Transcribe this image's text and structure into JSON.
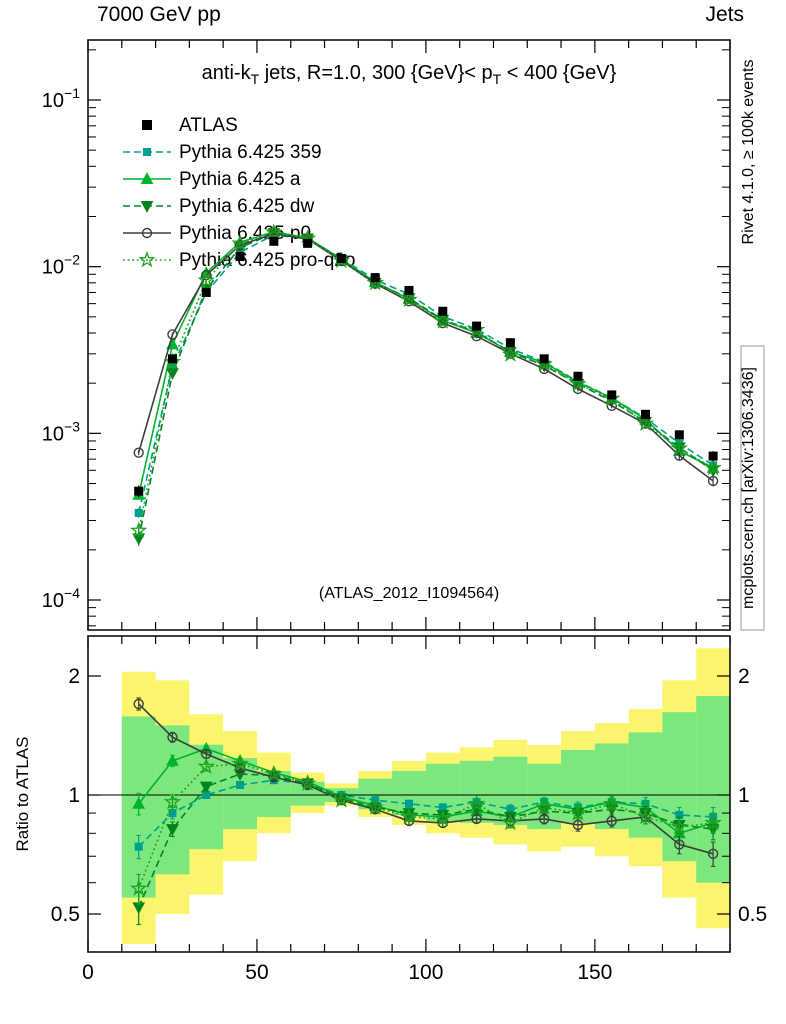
{
  "header": {
    "left": "7000 GeV pp",
    "right": "Jets"
  },
  "right_margin": {
    "top": "Rivet 4.1.0, ≥ 100k events",
    "bottom": "mcplots.cern.ch [arXiv:1306.3436]"
  },
  "watermark": "(ATLAS_2012_I1094564)",
  "chart_data": {
    "type": "line",
    "title_parts": [
      {
        "t": "anti-k"
      },
      {
        "t": "T",
        "sub": true
      },
      {
        "t": " jets, R=1.0, 300 {GeV}< p"
      },
      {
        "t": "T",
        "sub": true
      },
      {
        "t": " < 400 {GeV}"
      }
    ],
    "x_axis": {
      "min": 0,
      "max": 190,
      "major_ticks": [
        0,
        50,
        100,
        150
      ],
      "minor_step": 10
    },
    "y_axis_main": {
      "scale": "log",
      "exponents": [
        -1,
        -2,
        -3,
        -4
      ],
      "range": [
        6.6e-05,
        0.23
      ]
    },
    "y_axis_ratio": {
      "scale": "log",
      "tick_values": [
        2,
        1,
        0.5
      ],
      "tick_labels": [
        "2",
        "1",
        "0.5"
      ],
      "range": [
        0.4,
        2.5
      ],
      "label": "Ratio to ATLAS",
      "reference_line": 1
    },
    "x": [
      15,
      25,
      35,
      45,
      55,
      65,
      75,
      85,
      95,
      105,
      115,
      125,
      135,
      145,
      155,
      165,
      175,
      185
    ],
    "reference": {
      "name": "ATLAS",
      "color": "#000000",
      "marker": "square",
      "values": [
        0.00045,
        0.0028,
        0.007,
        0.0115,
        0.0142,
        0.0138,
        0.0112,
        0.0086,
        0.0072,
        0.0054,
        0.0044,
        0.0035,
        0.0028,
        0.0022,
        0.0017,
        0.0013,
        0.00098,
        0.00073
      ],
      "err_frac": [
        0.08,
        0.05,
        0.04,
        0.03,
        0.03,
        0.03,
        0.03,
        0.03,
        0.03,
        0.03,
        0.035,
        0.04,
        0.04,
        0.045,
        0.05,
        0.055,
        0.06,
        0.07
      ]
    },
    "series": [
      {
        "name": "Pythia 6.425 359",
        "color": "#00a08f",
        "line": "dashed",
        "marker": "square",
        "ratio": [
          0.74,
          0.9,
          1.0,
          1.06,
          1.09,
          1.07,
          1.0,
          0.97,
          0.95,
          0.93,
          0.96,
          0.92,
          0.96,
          0.93,
          0.96,
          0.95,
          0.89,
          0.88
        ],
        "err": [
          0.05,
          0.03,
          0.02,
          0.02,
          0.015,
          0.015,
          0.015,
          0.02,
          0.02,
          0.02,
          0.02,
          0.025,
          0.025,
          0.03,
          0.03,
          0.035,
          0.04,
          0.05
        ]
      },
      {
        "name": "Pythia 6.425 a",
        "color": "#00b32c",
        "line": "solid",
        "marker": "triangle-up",
        "ratio": [
          0.95,
          1.22,
          1.31,
          1.22,
          1.14,
          1.08,
          0.99,
          0.94,
          0.89,
          0.88,
          0.91,
          0.88,
          0.95,
          0.92,
          0.96,
          0.93,
          0.8,
          0.85
        ],
        "err": [
          0.06,
          0.04,
          0.025,
          0.02,
          0.015,
          0.015,
          0.015,
          0.02,
          0.02,
          0.02,
          0.02,
          0.025,
          0.03,
          0.03,
          0.03,
          0.035,
          0.04,
          0.05
        ]
      },
      {
        "name": "Pythia 6.425 dw",
        "color": "#00851f",
        "line": "dashed",
        "marker": "triangle-down",
        "ratio": [
          0.52,
          0.82,
          1.05,
          1.13,
          1.12,
          1.07,
          0.98,
          0.93,
          0.9,
          0.89,
          0.92,
          0.88,
          0.91,
          0.9,
          0.92,
          0.9,
          0.84,
          0.82
        ],
        "err": [
          0.05,
          0.035,
          0.025,
          0.02,
          0.015,
          0.015,
          0.015,
          0.02,
          0.02,
          0.02,
          0.02,
          0.025,
          0.025,
          0.03,
          0.03,
          0.035,
          0.04,
          0.05
        ]
      },
      {
        "name": "Pythia 6.425 p0",
        "color": "#3d3d3d",
        "line": "solid",
        "marker": "circle",
        "ratio": [
          1.7,
          1.4,
          1.27,
          1.17,
          1.11,
          1.06,
          0.97,
          0.92,
          0.86,
          0.85,
          0.87,
          0.86,
          0.87,
          0.84,
          0.86,
          0.88,
          0.75,
          0.71
        ],
        "err": [
          0.06,
          0.04,
          0.03,
          0.02,
          0.02,
          0.015,
          0.015,
          0.02,
          0.02,
          0.02,
          0.02,
          0.025,
          0.025,
          0.03,
          0.03,
          0.035,
          0.04,
          0.05
        ]
      },
      {
        "name": "Pythia 6.425 pro-q2o",
        "color": "#1fa01f",
        "line": "dotted",
        "marker": "star",
        "ratio": [
          0.58,
          0.96,
          1.18,
          1.2,
          1.13,
          1.07,
          0.97,
          0.93,
          0.88,
          0.87,
          0.95,
          0.85,
          0.93,
          0.9,
          0.95,
          0.88,
          0.83,
          0.85
        ],
        "err": [
          0.05,
          0.04,
          0.03,
          0.02,
          0.02,
          0.015,
          0.015,
          0.02,
          0.02,
          0.02,
          0.02,
          0.025,
          0.03,
          0.03,
          0.03,
          0.035,
          0.04,
          0.05
        ]
      }
    ],
    "bands": {
      "bin_start": 10,
      "bin_width": 10,
      "yellow": {
        "color": "#fbf46d",
        "lo": [
          0.42,
          0.5,
          0.56,
          0.68,
          0.8,
          0.9,
          0.94,
          0.88,
          0.84,
          0.8,
          0.78,
          0.75,
          0.72,
          0.74,
          0.7,
          0.66,
          0.55,
          0.46
        ],
        "hi": [
          2.05,
          1.95,
          1.6,
          1.45,
          1.28,
          1.14,
          1.07,
          1.15,
          1.22,
          1.28,
          1.32,
          1.38,
          1.34,
          1.45,
          1.52,
          1.65,
          1.95,
          2.35
        ]
      },
      "green": {
        "color": "#7ce77c",
        "lo": [
          0.55,
          0.63,
          0.73,
          0.82,
          0.88,
          0.94,
          0.96,
          0.92,
          0.89,
          0.86,
          0.85,
          0.84,
          0.82,
          0.85,
          0.82,
          0.78,
          0.68,
          0.6
        ],
        "hi": [
          1.58,
          1.5,
          1.34,
          1.24,
          1.15,
          1.08,
          1.04,
          1.1,
          1.15,
          1.2,
          1.22,
          1.25,
          1.2,
          1.3,
          1.35,
          1.44,
          1.62,
          1.78
        ]
      }
    }
  }
}
